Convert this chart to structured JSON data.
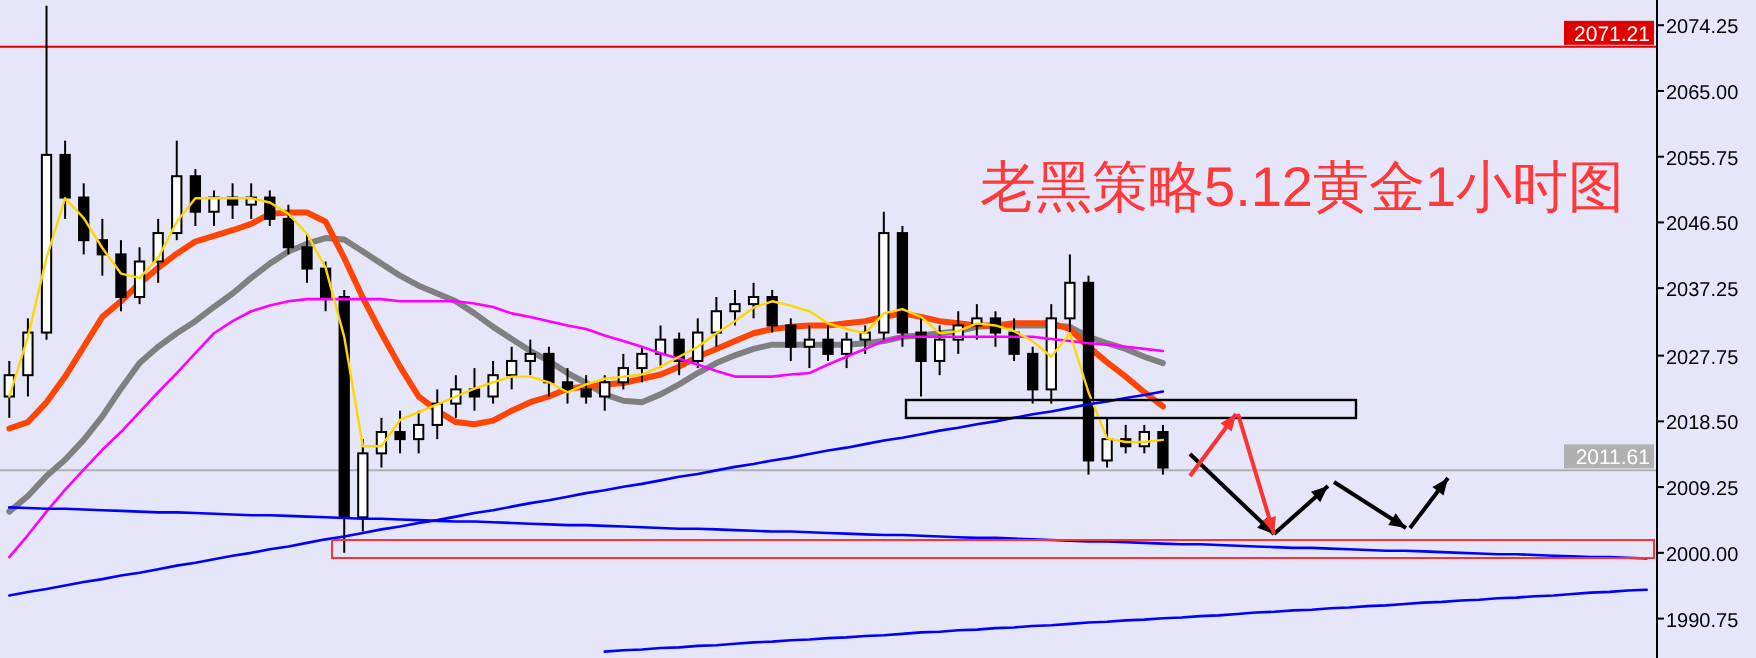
{
  "chart_data": {
    "type": "candlestick",
    "title": "老黑策略5.12黄金1小时图",
    "categories": [
      null,
      null,
      null,
      null,
      null,
      null,
      null,
      null,
      null,
      null,
      null,
      null,
      null,
      null,
      null,
      null,
      null,
      null,
      null,
      null,
      null,
      null,
      null,
      null,
      null,
      null,
      null,
      null,
      null,
      null,
      null,
      null,
      null,
      null,
      null,
      null,
      null,
      null,
      null,
      null,
      null,
      null,
      null,
      null,
      null,
      null,
      null,
      null,
      null,
      null,
      null,
      null,
      null,
      null,
      null,
      null,
      null,
      null,
      null,
      null,
      null,
      null,
      null,
      null,
      null,
      null,
      null,
      null,
      null,
      null,
      null,
      null,
      null,
      null,
      null,
      null,
      null,
      null,
      null,
      null,
      null,
      null,
      null,
      null,
      null,
      null,
      null,
      null,
      null
    ],
    "ohlc": [
      [
        2022,
        2027,
        2019,
        2025
      ],
      [
        2025,
        2033,
        2022,
        2031
      ],
      [
        2031,
        2077,
        2030,
        2056
      ],
      [
        2056,
        2058,
        2047,
        2050
      ],
      [
        2050,
        2052,
        2042,
        2044
      ],
      [
        2044,
        2047,
        2039,
        2042
      ],
      [
        2042,
        2044,
        2034,
        2036
      ],
      [
        2036,
        2043,
        2035,
        2041
      ],
      [
        2041,
        2047,
        2038,
        2045
      ],
      [
        2045,
        2058,
        2044,
        2053
      ],
      [
        2053,
        2054,
        2046,
        2048
      ],
      [
        2048,
        2051,
        2046,
        2050
      ],
      [
        2050,
        2052,
        2047,
        2049
      ],
      [
        2049,
        2052,
        2047,
        2050
      ],
      [
        2050,
        2051,
        2046,
        2047
      ],
      [
        2047,
        2049,
        2042,
        2043
      ],
      [
        2043,
        2045,
        2038,
        2040
      ],
      [
        2040,
        2041,
        2034,
        2036
      ],
      [
        2036,
        2037,
        2000,
        2005
      ],
      [
        2005,
        2016,
        2003,
        2014
      ],
      [
        2014,
        2019,
        2012,
        2017
      ],
      [
        2017,
        2020,
        2014,
        2016
      ],
      [
        2016,
        2020,
        2014,
        2018
      ],
      [
        2018,
        2023,
        2016,
        2021
      ],
      [
        2021,
        2025,
        2019,
        2023
      ],
      [
        2023,
        2026,
        2020,
        2022
      ],
      [
        2022,
        2027,
        2021,
        2025
      ],
      [
        2025,
        2029,
        2023,
        2027
      ],
      [
        2027,
        2030,
        2025,
        2028
      ],
      [
        2028,
        2029,
        2022,
        2024
      ],
      [
        2024,
        2026,
        2021,
        2023
      ],
      [
        2023,
        2025,
        2021,
        2022
      ],
      [
        2022,
        2025,
        2020,
        2024
      ],
      [
        2024,
        2028,
        2023,
        2026
      ],
      [
        2026,
        2029,
        2024,
        2028
      ],
      [
        2028,
        2032,
        2026,
        2030
      ],
      [
        2030,
        2031,
        2025,
        2027
      ],
      [
        2027,
        2033,
        2026,
        2031
      ],
      [
        2031,
        2036,
        2029,
        2034
      ],
      [
        2034,
        2037,
        2032,
        2035
      ],
      [
        2035,
        2038,
        2033,
        2036
      ],
      [
        2036,
        2037,
        2031,
        2032
      ],
      [
        2032,
        2033,
        2027,
        2029
      ],
      [
        2029,
        2032,
        2026,
        2030
      ],
      [
        2030,
        2032,
        2027,
        2028
      ],
      [
        2028,
        2031,
        2026,
        2030
      ],
      [
        2030,
        2032,
        2028,
        2031
      ],
      [
        2031,
        2048,
        2030,
        2045
      ],
      [
        2045,
        2046,
        2029,
        2031
      ],
      [
        2031,
        2033,
        2022,
        2027
      ],
      [
        2027,
        2032,
        2025,
        2030
      ],
      [
        2030,
        2034,
        2028,
        2032
      ],
      [
        2032,
        2035,
        2030,
        2033
      ],
      [
        2033,
        2034,
        2029,
        2031
      ],
      [
        2031,
        2033,
        2027,
        2028
      ],
      [
        2028,
        2029,
        2021,
        2023
      ],
      [
        2023,
        2035,
        2021,
        2033
      ],
      [
        2033,
        2042,
        2031,
        2038
      ],
      [
        2038,
        2039,
        2011,
        2013
      ],
      [
        2013,
        2019,
        2012,
        2016
      ],
      [
        2016,
        2018,
        2014,
        2015
      ],
      [
        2015,
        2018,
        2014,
        2017
      ],
      [
        2017,
        2018,
        2011,
        2012
      ],
      null,
      null,
      null,
      null,
      null,
      null,
      null,
      null,
      null,
      null,
      null,
      null,
      null,
      null,
      null,
      null,
      null,
      null,
      null,
      null,
      null,
      null,
      null,
      null,
      null,
      null
    ],
    "series": [
      {
        "type": "line",
        "color": "#808080",
        "values": [
          2005.8,
          2008.0,
          2010.8,
          2013.1,
          2015.9,
          2019.2,
          2023.1,
          2026.7,
          2029.0,
          2030.9,
          2032.6,
          2034.6,
          2036.5,
          2038.7,
          2040.7,
          2042.4,
          2043.5,
          2044.3,
          2044.1,
          2042.4,
          2040.7,
          2039.0,
          2037.6,
          2036.5,
          2035.4,
          2033.7,
          2031.8,
          2030.1,
          2028.4,
          2027.0,
          2025.3,
          2023.9,
          2022.3,
          2021.4,
          2021.2,
          2022.3,
          2023.7,
          2025.3,
          2026.7,
          2027.8,
          2028.7,
          2029.3,
          2029.3,
          2029.3,
          2029.3,
          2029.3,
          2029.5,
          2029.8,
          2030.4,
          2030.6,
          2030.9,
          2031.2,
          2031.8,
          2032.0,
          2032.0,
          2032.0,
          2032.0,
          2031.8,
          2030.4,
          2029.5,
          2028.7,
          2027.6,
          2026.7,
          null,
          null,
          null,
          null,
          null,
          null,
          null,
          null,
          null,
          null,
          null,
          null,
          null,
          null,
          null,
          null,
          null,
          null,
          null,
          null,
          null,
          null,
          null,
          null,
          null,
          null
        ]
      },
      {
        "type": "line",
        "color": "#ff4500",
        "values": [
          2017.5,
          2018.4,
          2021.2,
          2024.8,
          2029.0,
          2033.2,
          2035.4,
          2037.9,
          2040.1,
          2042.1,
          2043.8,
          2044.6,
          2045.4,
          2046.3,
          2047.7,
          2047.9,
          2047.9,
          2046.6,
          2041.5,
          2035.9,
          2030.9,
          2026.2,
          2022.0,
          2020.0,
          2018.4,
          2018.1,
          2018.6,
          2020.0,
          2021.2,
          2022.0,
          2023.1,
          2023.4,
          2023.7,
          2023.9,
          2024.5,
          2025.1,
          2026.2,
          2027.6,
          2028.7,
          2029.8,
          2030.9,
          2031.5,
          2031.8,
          2032.0,
          2032.0,
          2032.3,
          2032.6,
          2033.2,
          2033.7,
          2033.2,
          2032.6,
          2032.3,
          2032.0,
          2032.0,
          2032.3,
          2032.3,
          2032.3,
          2031.5,
          2029.0,
          2026.8,
          2024.8,
          2022.6,
          2020.6,
          null,
          null,
          null,
          null,
          null,
          null,
          null,
          null,
          null,
          null,
          null,
          null,
          null,
          null,
          null,
          null,
          null,
          null,
          null,
          null,
          null,
          null,
          null,
          null,
          null,
          null
        ]
      },
      {
        "type": "line",
        "color": "#ff00ff",
        "values": [
          1999.4,
          2002.5,
          2005.8,
          2008.9,
          2011.7,
          2014.5,
          2017.0,
          2019.8,
          2022.6,
          2025.3,
          2028.1,
          2030.9,
          2032.6,
          2034.0,
          2034.8,
          2035.4,
          2035.7,
          2035.7,
          2035.7,
          2035.7,
          2035.7,
          2035.4,
          2035.4,
          2035.4,
          2035.4,
          2035.1,
          2034.6,
          2033.7,
          2033.2,
          2032.6,
          2032.0,
          2031.5,
          2030.6,
          2029.8,
          2029.0,
          2028.1,
          2027.3,
          2026.5,
          2025.6,
          2024.8,
          2024.8,
          2024.8,
          2025.1,
          2025.3,
          2026.5,
          2027.6,
          2028.7,
          2029.8,
          2030.4,
          2030.4,
          2030.4,
          2030.4,
          2030.4,
          2030.4,
          2030.4,
          2030.4,
          2030.1,
          2029.8,
          2029.5,
          2029.3,
          2029.0,
          2028.7,
          2028.4,
          null,
          null,
          null,
          null,
          null,
          null,
          null,
          null,
          null,
          null,
          null,
          null,
          null,
          null,
          null,
          null,
          null,
          null,
          null,
          null,
          null,
          null,
          null,
          null,
          null,
          null
        ]
      },
      {
        "type": "line",
        "color": "#ffd700",
        "values": [
          2022.0,
          2030.4,
          2041.5,
          2049.9,
          2047.1,
          2042.9,
          2039.3,
          2038.7,
          2041.5,
          2046.6,
          2049.9,
          2049.9,
          2049.9,
          2049.9,
          2049.3,
          2047.7,
          2044.9,
          2040.1,
          2030.4,
          2015.0,
          2015.0,
          2018.7,
          2019.8,
          2020.9,
          2022.0,
          2023.1,
          2024.0,
          2024.8,
          2024.8,
          2024.0,
          2022.6,
          2023.7,
          2024.5,
          2024.8,
          2025.1,
          2026.2,
          2027.6,
          2029.0,
          2030.9,
          2032.6,
          2034.5,
          2035.4,
          2034.8,
          2034.0,
          2032.3,
          2031.5,
          2030.9,
          2033.7,
          2034.3,
          2033.2,
          2030.9,
          2031.2,
          2032.3,
          2032.0,
          2031.2,
          2029.8,
          2027.6,
          2030.9,
          2022.6,
          2016.1,
          2015.6,
          2015.6,
          2015.9,
          null,
          null,
          null,
          null,
          null,
          null,
          null,
          null,
          null,
          null,
          null,
          null,
          null,
          null,
          null,
          null,
          null,
          null,
          null,
          null,
          null,
          null,
          null,
          null,
          null,
          null
        ]
      },
      {
        "type": "line",
        "color": "#0000ff",
        "values": [
          2006.4,
          2006.3,
          2006.2,
          2006.2,
          2006.1,
          2006.0,
          2005.9,
          2005.8,
          2005.7,
          2005.7,
          2005.6,
          2005.5,
          2005.4,
          2005.3,
          2005.3,
          2005.2,
          2005.1,
          2005.0,
          2004.9,
          2004.8,
          2004.8,
          2004.7,
          2004.6,
          2004.5,
          2004.4,
          2004.4,
          2004.3,
          2004.2,
          2004.1,
          2004.0,
          2003.9,
          2003.9,
          2003.8,
          2003.7,
          2003.6,
          2003.5,
          2003.4,
          2003.4,
          2003.3,
          2003.2,
          2003.1,
          2003.0,
          2003.0,
          2002.9,
          2002.8,
          2002.7,
          2002.6,
          2002.5,
          2002.5,
          2002.4,
          2002.3,
          2002.2,
          2002.1,
          2002.1,
          2002.0,
          2001.9,
          2001.8,
          2001.7,
          2001.6,
          2001.6,
          2001.5,
          2001.4,
          2001.3,
          2001.2,
          2001.2,
          2001.1,
          2001.0,
          2000.9,
          2000.8,
          2000.7,
          2000.7,
          2000.6,
          2000.5,
          2000.4,
          2000.3,
          2000.3,
          2000.2,
          2000.1,
          2000.0,
          1999.9,
          1999.8,
          1999.8,
          1999.7,
          1999.6,
          1999.5,
          1999.4,
          1999.4,
          1999.3,
          1999.2
        ]
      },
      {
        "type": "line",
        "color": "#0000ff",
        "values": [
          1994.0,
          1994.5,
          1994.9,
          1995.4,
          1995.9,
          1996.3,
          1996.8,
          1997.2,
          1997.7,
          1998.2,
          1998.6,
          1999.1,
          1999.6,
          2000.0,
          2000.5,
          2000.9,
          2001.4,
          2001.9,
          2002.3,
          2002.8,
          2003.3,
          2003.7,
          2004.2,
          2004.6,
          2005.1,
          2005.6,
          2006.0,
          2006.5,
          2007.0,
          2007.4,
          2007.9,
          2008.4,
          2008.8,
          2009.3,
          2009.7,
          2010.2,
          2010.7,
          2011.1,
          2011.6,
          2012.1,
          2012.5,
          2013.0,
          2013.4,
          2013.9,
          2014.4,
          2014.8,
          2015.3,
          2015.8,
          2016.2,
          2016.7,
          2017.2,
          2017.6,
          2018.1,
          2018.5,
          2019.0,
          2019.5,
          2019.9,
          2020.4,
          2020.9,
          2021.3,
          2021.8,
          2022.2,
          2022.7,
          null,
          null,
          null,
          null,
          null,
          null,
          null,
          null,
          null,
          null,
          null,
          null,
          null,
          null,
          null,
          null,
          null,
          null,
          null,
          null,
          null,
          null,
          null,
          null,
          null,
          null
        ]
      },
      {
        "type": "line",
        "color": "#0000ff",
        "values": [
          null,
          null,
          null,
          null,
          null,
          null,
          null,
          null,
          null,
          null,
          null,
          null,
          null,
          null,
          null,
          null,
          null,
          null,
          null,
          null,
          null,
          null,
          null,
          null,
          null,
          null,
          null,
          null,
          null,
          null,
          null,
          null,
          1986.1,
          1986.3,
          1986.4,
          1986.6,
          1986.7,
          1986.9,
          1987.0,
          1987.2,
          1987.4,
          1987.5,
          1987.7,
          1987.8,
          1988.0,
          1988.1,
          1988.3,
          1988.4,
          1988.6,
          1988.8,
          1988.9,
          1989.1,
          1989.2,
          1989.4,
          1989.5,
          1989.7,
          1989.8,
          1990.0,
          1990.2,
          1990.3,
          1990.5,
          1990.6,
          1990.8,
          1990.9,
          1991.1,
          1991.2,
          1991.4,
          1991.6,
          1991.7,
          1991.9,
          1992.0,
          1992.2,
          1992.3,
          1992.5,
          1992.6,
          1992.8,
          1993.0,
          1993.1,
          1993.3,
          1993.4,
          1993.6,
          1993.7,
          1993.9,
          1994.0,
          1994.2,
          1994.4,
          1994.5,
          1994.7,
          1994.8
        ]
      }
    ],
    "ylim": [
      1985.2,
      2077.8
    ],
    "yticks": [
      {
        "value": 1990.75,
        "label": "1990.75"
      },
      {
        "value": 2000,
        "label": "2000.00"
      },
      {
        "value": 2009.25,
        "label": "2009.25"
      },
      {
        "value": 2018.5,
        "label": "2018.50"
      },
      {
        "value": 2027.75,
        "label": "2027.75"
      },
      {
        "value": 2037.25,
        "label": "2037.25"
      },
      {
        "value": 2046.5,
        "label": "2046.50"
      },
      {
        "value": 2055.75,
        "label": "2055.75"
      },
      {
        "value": 2065,
        "label": "2065.00"
      },
      {
        "value": 2074.25,
        "label": "2074.25"
      }
    ],
    "tick_labels": "y",
    "ref_lines": [
      {
        "axis": "y",
        "value": 2071.21,
        "label": "2071.21",
        "color": "#e00000"
      },
      {
        "axis": "y",
        "value": 2011.61,
        "label": "2011.61",
        "color": "#b0b0b0"
      }
    ]
  }
}
